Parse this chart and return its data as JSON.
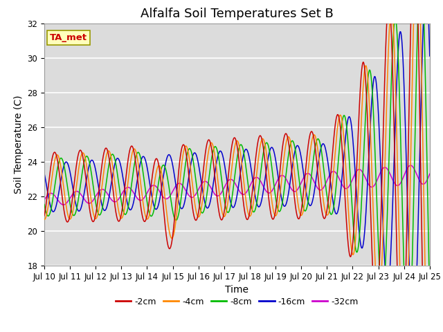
{
  "title": "Alfalfa Soil Temperatures Set B",
  "xlabel": "Time",
  "ylabel": "Soil Temperature (C)",
  "ylim": [
    18,
    32
  ],
  "xlim_days": [
    0,
    15
  ],
  "xtick_labels": [
    "Jul 10",
    "Jul 11",
    "Jul 12",
    "Jul 13",
    "Jul 14",
    "Jul 15",
    "Jul 16",
    "Jul 17",
    "Jul 18",
    "Jul 19",
    "Jul 20",
    "Jul 21",
    "Jul 22",
    "Jul 23",
    "Jul 24",
    "Jul 25"
  ],
  "ytick_values": [
    18,
    20,
    22,
    24,
    26,
    28,
    30,
    32
  ],
  "colors": {
    "-2cm": "#cc0000",
    "-4cm": "#ff8800",
    "-8cm": "#00bb00",
    "-16cm": "#0000cc",
    "-32cm": "#cc00cc"
  },
  "legend_label": "TA_met",
  "background_color": "#dcdcdc",
  "fig_background": "#ffffff",
  "title_fontsize": 13,
  "axis_label_fontsize": 10,
  "tick_fontsize": 8.5,
  "legend_fontsize": 9
}
